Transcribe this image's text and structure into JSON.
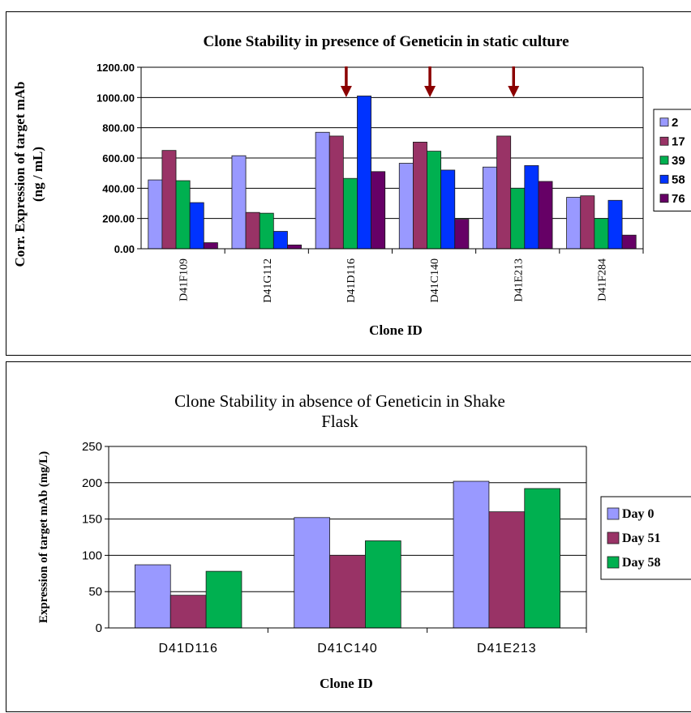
{
  "chart_data": [
    {
      "type": "bar",
      "title": "Clone Stability  in presence of Geneticin in static culture",
      "xlabel": "Clone ID",
      "ylabel_lines": [
        "Corr. Expression of target mAb",
        "(ng / mL)"
      ],
      "categories": [
        "D41F109",
        "D41G112",
        "D41D116",
        "D41C140",
        "D41E213",
        "D41F284"
      ],
      "ylim": [
        0,
        1200
      ],
      "yticks": [
        "0.00",
        "200.00",
        "400.00",
        "600.00",
        "800.00",
        "1000.00",
        "1200.00"
      ],
      "grid": "horizontal",
      "legend_position": "right",
      "series": [
        {
          "name": "2",
          "color": "#9999ff",
          "values": [
            455,
            615,
            770,
            565,
            540,
            340
          ]
        },
        {
          "name": "17",
          "color": "#993366",
          "values": [
            650,
            240,
            745,
            705,
            745,
            350
          ]
        },
        {
          "name": "39",
          "color": "#00b050",
          "values": [
            450,
            235,
            465,
            645,
            400,
            200
          ]
        },
        {
          "name": "58",
          "color": "#0033ff",
          "values": [
            305,
            115,
            1010,
            520,
            550,
            320
          ]
        },
        {
          "name": "76",
          "color": "#660066",
          "values": [
            40,
            25,
            510,
            195,
            445,
            90
          ]
        }
      ],
      "annotations": {
        "arrow_color": "#8b0000",
        "arrow_categories": [
          "D41D116",
          "D41C140",
          "D41E213"
        ]
      }
    },
    {
      "type": "bar",
      "title_lines": [
        "Clone Stability in absence of Geneticin in Shake",
        "Flask"
      ],
      "xlabel": "Clone ID",
      "ylabel": "Expression of target mAb (mg/L)",
      "categories": [
        "D41D116",
        "D41C140",
        "D41E213"
      ],
      "ylim": [
        0,
        250
      ],
      "yticks": [
        "0",
        "50",
        "100",
        "150",
        "200",
        "250"
      ],
      "grid": "horizontal",
      "legend_position": "right",
      "series": [
        {
          "name": "Day 0",
          "color": "#9999ff",
          "values": [
            87,
            152,
            202
          ]
        },
        {
          "name": "Day 51",
          "color": "#993366",
          "values": [
            45,
            100,
            160
          ]
        },
        {
          "name": "Day 58",
          "color": "#00b050",
          "values": [
            78,
            120,
            192
          ]
        }
      ]
    }
  ]
}
